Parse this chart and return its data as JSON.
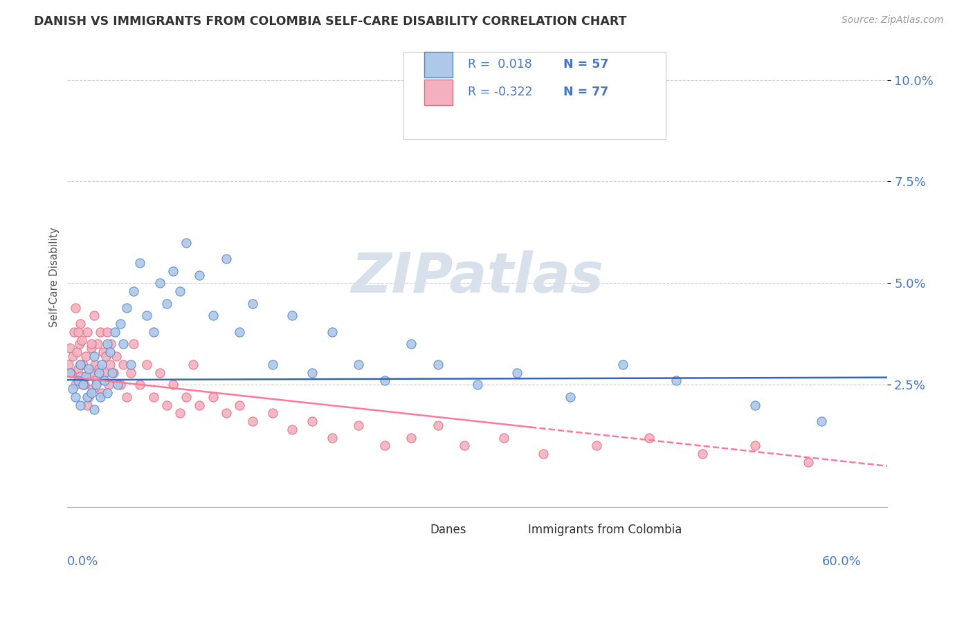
{
  "title": "DANISH VS IMMIGRANTS FROM COLOMBIA SELF-CARE DISABILITY CORRELATION CHART",
  "source": "Source: ZipAtlas.com",
  "ylabel": "Self-Care Disability",
  "ytick_labels": [
    "2.5%",
    "5.0%",
    "7.5%",
    "10.0%"
  ],
  "ytick_values": [
    0.025,
    0.05,
    0.075,
    0.1
  ],
  "xlim": [
    0.0,
    0.62
  ],
  "ylim": [
    -0.005,
    0.108
  ],
  "r_danes": 0.018,
  "n_danes": 57,
  "r_colombia": -0.322,
  "n_colombia": 77,
  "danes_color": "#adc8e8",
  "colombia_color": "#f5b0c0",
  "danes_edge_color": "#5588cc",
  "colombia_edge_color": "#e07080",
  "danes_line_color": "#3366BB",
  "colombia_line_color": "#FF7799",
  "background_color": "#ffffff",
  "grid_color": "#cccccc",
  "watermark_color": "#d8e0ec",
  "danes_scatter_x": [
    0.002,
    0.004,
    0.006,
    0.008,
    0.01,
    0.01,
    0.012,
    0.014,
    0.015,
    0.016,
    0.018,
    0.02,
    0.02,
    0.022,
    0.024,
    0.025,
    0.026,
    0.028,
    0.03,
    0.03,
    0.032,
    0.034,
    0.036,
    0.038,
    0.04,
    0.042,
    0.045,
    0.048,
    0.05,
    0.055,
    0.06,
    0.065,
    0.07,
    0.075,
    0.08,
    0.085,
    0.09,
    0.1,
    0.11,
    0.12,
    0.13,
    0.14,
    0.155,
    0.17,
    0.185,
    0.2,
    0.22,
    0.24,
    0.26,
    0.28,
    0.31,
    0.34,
    0.38,
    0.42,
    0.46,
    0.52,
    0.57
  ],
  "danes_scatter_y": [
    0.028,
    0.024,
    0.022,
    0.026,
    0.03,
    0.02,
    0.025,
    0.027,
    0.022,
    0.029,
    0.023,
    0.032,
    0.019,
    0.025,
    0.028,
    0.022,
    0.03,
    0.026,
    0.035,
    0.023,
    0.033,
    0.028,
    0.038,
    0.025,
    0.04,
    0.035,
    0.044,
    0.03,
    0.048,
    0.055,
    0.042,
    0.038,
    0.05,
    0.045,
    0.053,
    0.048,
    0.06,
    0.052,
    0.042,
    0.056,
    0.038,
    0.045,
    0.03,
    0.042,
    0.028,
    0.038,
    0.03,
    0.026,
    0.035,
    0.03,
    0.025,
    0.028,
    0.022,
    0.03,
    0.026,
    0.02,
    0.016
  ],
  "colombia_scatter_x": [
    0.001,
    0.002,
    0.003,
    0.004,
    0.005,
    0.006,
    0.007,
    0.008,
    0.009,
    0.01,
    0.01,
    0.011,
    0.012,
    0.013,
    0.014,
    0.015,
    0.016,
    0.017,
    0.018,
    0.019,
    0.02,
    0.021,
    0.022,
    0.023,
    0.024,
    0.025,
    0.026,
    0.027,
    0.028,
    0.029,
    0.03,
    0.031,
    0.032,
    0.033,
    0.035,
    0.037,
    0.04,
    0.042,
    0.045,
    0.048,
    0.05,
    0.055,
    0.06,
    0.065,
    0.07,
    0.075,
    0.08,
    0.085,
    0.09,
    0.095,
    0.1,
    0.11,
    0.12,
    0.13,
    0.14,
    0.155,
    0.17,
    0.185,
    0.2,
    0.22,
    0.24,
    0.26,
    0.28,
    0.3,
    0.33,
    0.36,
    0.4,
    0.44,
    0.48,
    0.52,
    0.56,
    0.006,
    0.008,
    0.01,
    0.012,
    0.015,
    0.018
  ],
  "colombia_scatter_y": [
    0.03,
    0.034,
    0.028,
    0.032,
    0.038,
    0.025,
    0.033,
    0.029,
    0.035,
    0.04,
    0.027,
    0.036,
    0.03,
    0.025,
    0.032,
    0.038,
    0.022,
    0.028,
    0.034,
    0.024,
    0.042,
    0.03,
    0.026,
    0.035,
    0.029,
    0.038,
    0.023,
    0.033,
    0.028,
    0.032,
    0.038,
    0.025,
    0.03,
    0.035,
    0.028,
    0.032,
    0.025,
    0.03,
    0.022,
    0.028,
    0.035,
    0.025,
    0.03,
    0.022,
    0.028,
    0.02,
    0.025,
    0.018,
    0.022,
    0.03,
    0.02,
    0.022,
    0.018,
    0.02,
    0.016,
    0.018,
    0.014,
    0.016,
    0.012,
    0.015,
    0.01,
    0.012,
    0.015,
    0.01,
    0.012,
    0.008,
    0.01,
    0.012,
    0.008,
    0.01,
    0.006,
    0.044,
    0.038,
    0.03,
    0.025,
    0.02,
    0.035
  ]
}
